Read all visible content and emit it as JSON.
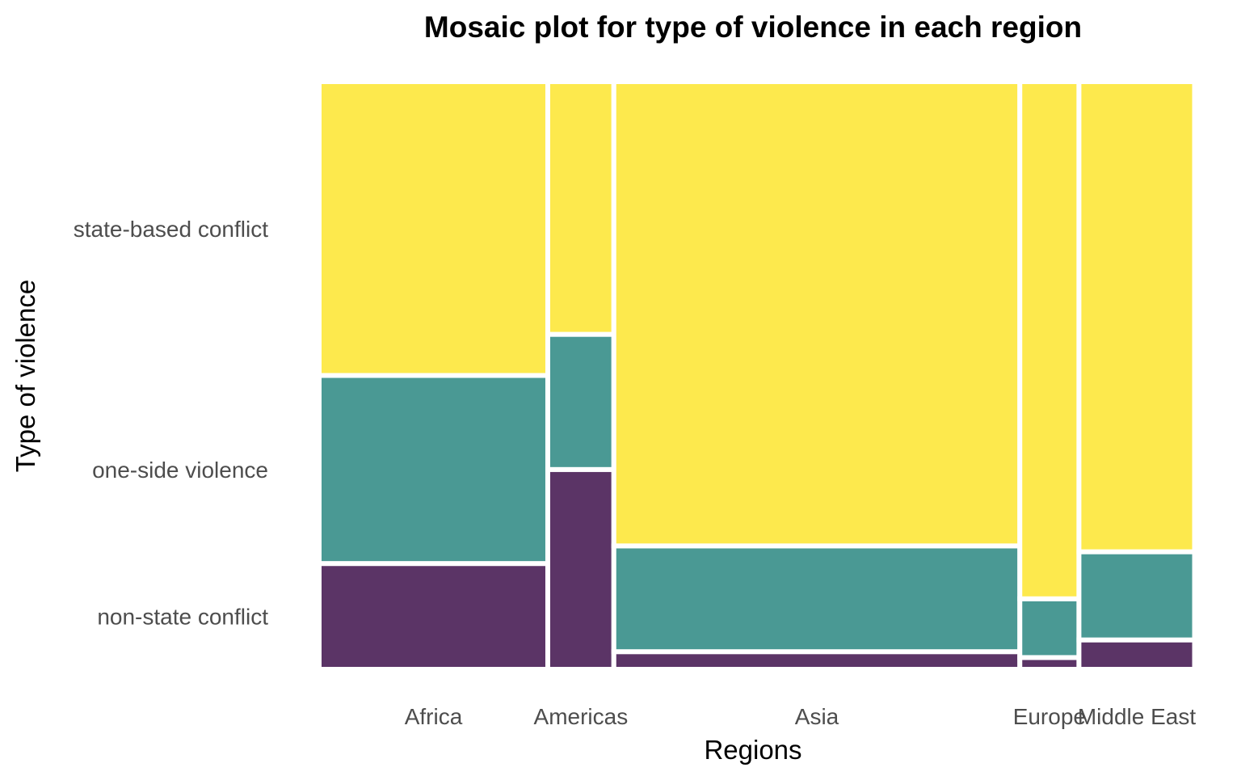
{
  "chart_data": {
    "type": "mosaic",
    "title": "Mosaic plot for type of violence in each region",
    "xlabel": "Regions",
    "ylabel": "Type of violence",
    "regions": [
      "Africa",
      "Americas",
      "Asia",
      "Europe",
      "Middle East"
    ],
    "region_share": [
      0.263,
      0.076,
      0.467,
      0.068,
      0.133
    ],
    "categories_bottom_to_top": [
      "non-state conflict",
      "one-side violence",
      "state-based conflict"
    ],
    "tick_label_position": "first column",
    "proportions": [
      {
        "region": "Africa",
        "non-state conflict": 0.18,
        "one-side violence": 0.32,
        "state-based conflict": 0.5
      },
      {
        "region": "Americas",
        "non-state conflict": 0.34,
        "one-side violence": 0.23,
        "state-based conflict": 0.43
      },
      {
        "region": "Asia",
        "non-state conflict": 0.03,
        "one-side violence": 0.18,
        "state-based conflict": 0.79
      },
      {
        "region": "Europe",
        "non-state conflict": 0.02,
        "one-side violence": 0.1,
        "state-based conflict": 0.88
      },
      {
        "region": "Middle East",
        "non-state conflict": 0.05,
        "one-side violence": 0.15,
        "state-based conflict": 0.8
      }
    ],
    "colors": {
      "non-state conflict": "#5b3466",
      "one-side violence": "#4a9994",
      "state-based conflict": "#fde94d"
    },
    "grid": false,
    "legend": "none"
  }
}
